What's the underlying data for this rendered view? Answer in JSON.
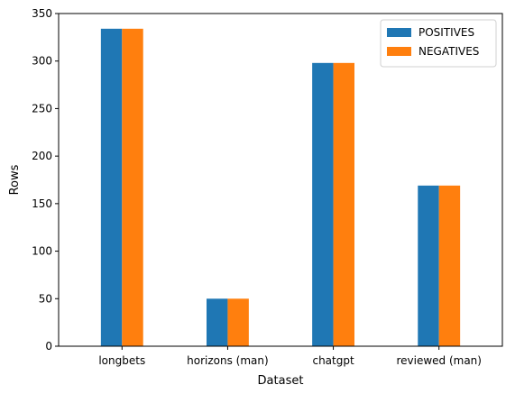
{
  "chart_data": {
    "type": "bar",
    "xlabel": "Dataset",
    "ylabel": "Rows",
    "categories": [
      "longbets",
      "horizons (man)",
      "chatgpt",
      "reviewed (man)"
    ],
    "series": [
      {
        "name": "POSITIVES",
        "color": "#1f77b4",
        "values": [
          334,
          50,
          298,
          169
        ]
      },
      {
        "name": "NEGATIVES",
        "color": "#ff7f0e",
        "values": [
          334,
          50,
          298,
          169
        ]
      }
    ],
    "ylim": [
      0,
      350
    ],
    "yticks": [
      0,
      50,
      100,
      150,
      200,
      250,
      300,
      350
    ],
    "legend": "top-right",
    "grid": false
  }
}
